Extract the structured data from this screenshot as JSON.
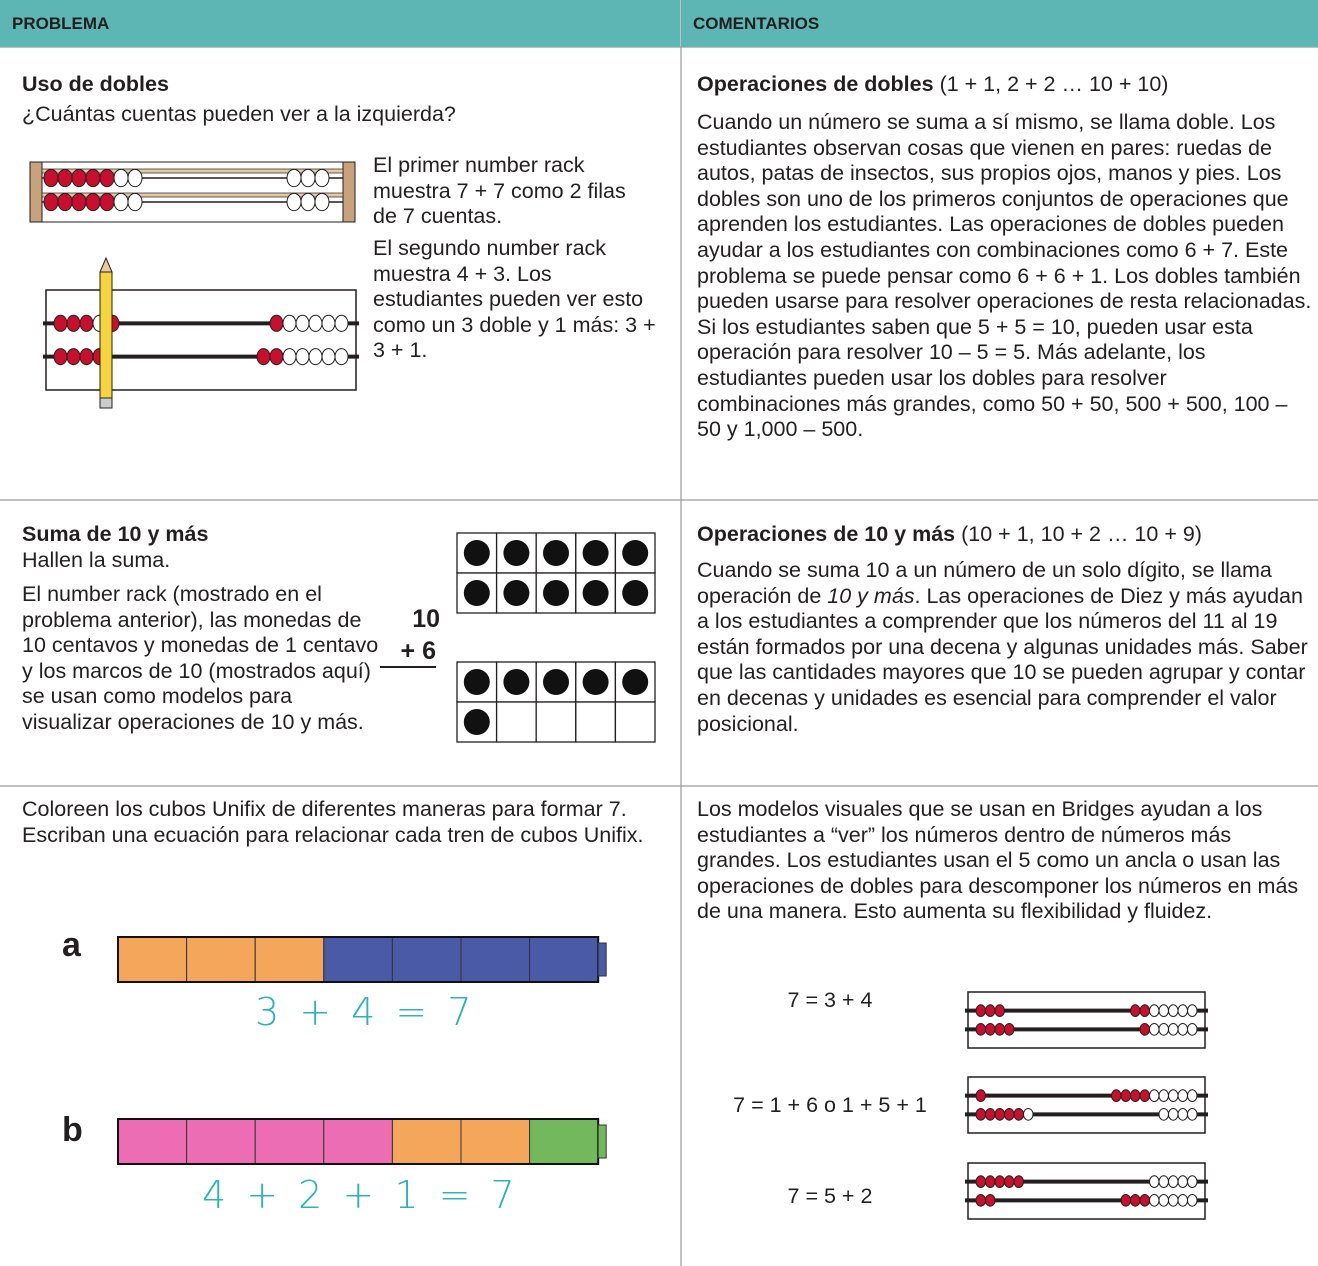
{
  "header": {
    "problem": "PROBLEMA",
    "comments": "COMENTARIOS"
  },
  "rows": [
    {
      "problem": {
        "title": "Uso de dobles",
        "question": "¿Cuántas cuentas pueden ver a la izquierda?",
        "notes": [
          "El primer number rack muestra 7 + 7 como 2 filas de 7 cuentas.",
          "El segundo number rack muestra 4 + 3. Los estudiantes pueden ver esto como un 3 doble y 1 más: 3 + 3 + 1."
        ]
      },
      "comment": {
        "title": "Operaciones de dobles",
        "title_note": "(1 + 1, 2 + 2 … 10 + 10)",
        "text": "Cuando un número se suma a sí mismo, se llama doble. Los estudiantes observan cosas que vienen en pares: ruedas de autos, patas de insectos, sus propios ojos, manos y pies. Los dobles son uno de los primeros conjuntos de operaciones que aprenden los estudiantes. Las operaciones de dobles pueden ayudar a los estudiantes con combinaciones como 6 + 7. Este problema se puede pensar como 6 + 6 + 1. Los dobles también pueden usarse para resolver operaciones de resta relacionadas. Si los estudiantes saben que 5 + 5 = 10, pueden usar esta operación para resolver 10 – 5 = 5. Más adelante, los estudiantes pueden usar los dobles para resolver combinaciones más grandes, como 50 + 50, 500 + 500, 100 – 50 y 1,000 – 500."
      }
    },
    {
      "problem": {
        "title": "Suma de 10 y más",
        "question": "Hallen la suma.",
        "text": "El number rack (mostrado en el problema anterior), las monedas de 10 centavos y monedas de 1 centavo y los marcos de 10 (mostrados aquí) se usan como modelos para visualizar operaciones de 10 y más.",
        "addend_top": "10",
        "addend_bottom": "+ 6"
      },
      "comment": {
        "title": "Operaciones de 10 y más",
        "title_note": "(10 + 1, 10 + 2 … 10 + 9)",
        "text_parts": [
          "Cuando se suma 10 a un número de un solo dígito, se llama operación de ",
          "10 y más",
          ". Las operaciones de Diez y más ayudan a los estudiantes a comprender que los números del 11 al 19 están formados por una decena y algunas unidades más. Saber que las cantidades mayores que 10 se pueden agrupar y contar en decenas y unidades es esencial para comprender el valor posicional."
        ]
      }
    },
    {
      "problem": {
        "text": "Coloreen los cubos Unifix de diferentes maneras para formar 7. Escriban una ecuación para relacionar cada tren de cubos Unifix.",
        "trains": [
          {
            "label": "a",
            "equation": "3 + 4 = 7"
          },
          {
            "label": "b",
            "equation": "4 + 2 + 1 = 7"
          }
        ]
      },
      "comment": {
        "text": "Los modelos visuales que se usan en Bridges ayudan a los estudiantes a “ver” los números dentro de números más grandes. Los estudiantes usan el 5 como un ancla o usan las operaciones de dobles para descomponer los números en más de una manera. Esto aumenta su flexibilidad y fluidez.",
        "equations": [
          "7 = 3 + 4",
          "7 = 1 + 6 o 1 + 5 + 1",
          "7 = 5 + 2"
        ]
      }
    }
  ]
}
